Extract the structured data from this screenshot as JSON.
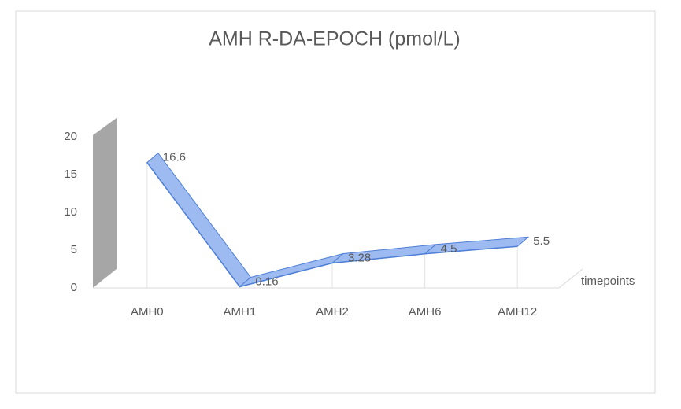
{
  "chart_data": {
    "type": "line3d",
    "title": "AMH R-DA-EPOCH (pmol/L)",
    "categories": [
      "AMH0",
      "AMH1",
      "AMH2",
      "AMH6",
      "AMH12"
    ],
    "values": [
      16.6,
      0.16,
      3.28,
      4.5,
      5.5
    ],
    "x_label": "timepoints",
    "color": "#9dbbf0",
    "edge_color": "#4f7fd6",
    "ylim": [
      0,
      20
    ],
    "yticks": [
      0,
      5,
      10,
      15,
      20
    ],
    "grid": true
  }
}
